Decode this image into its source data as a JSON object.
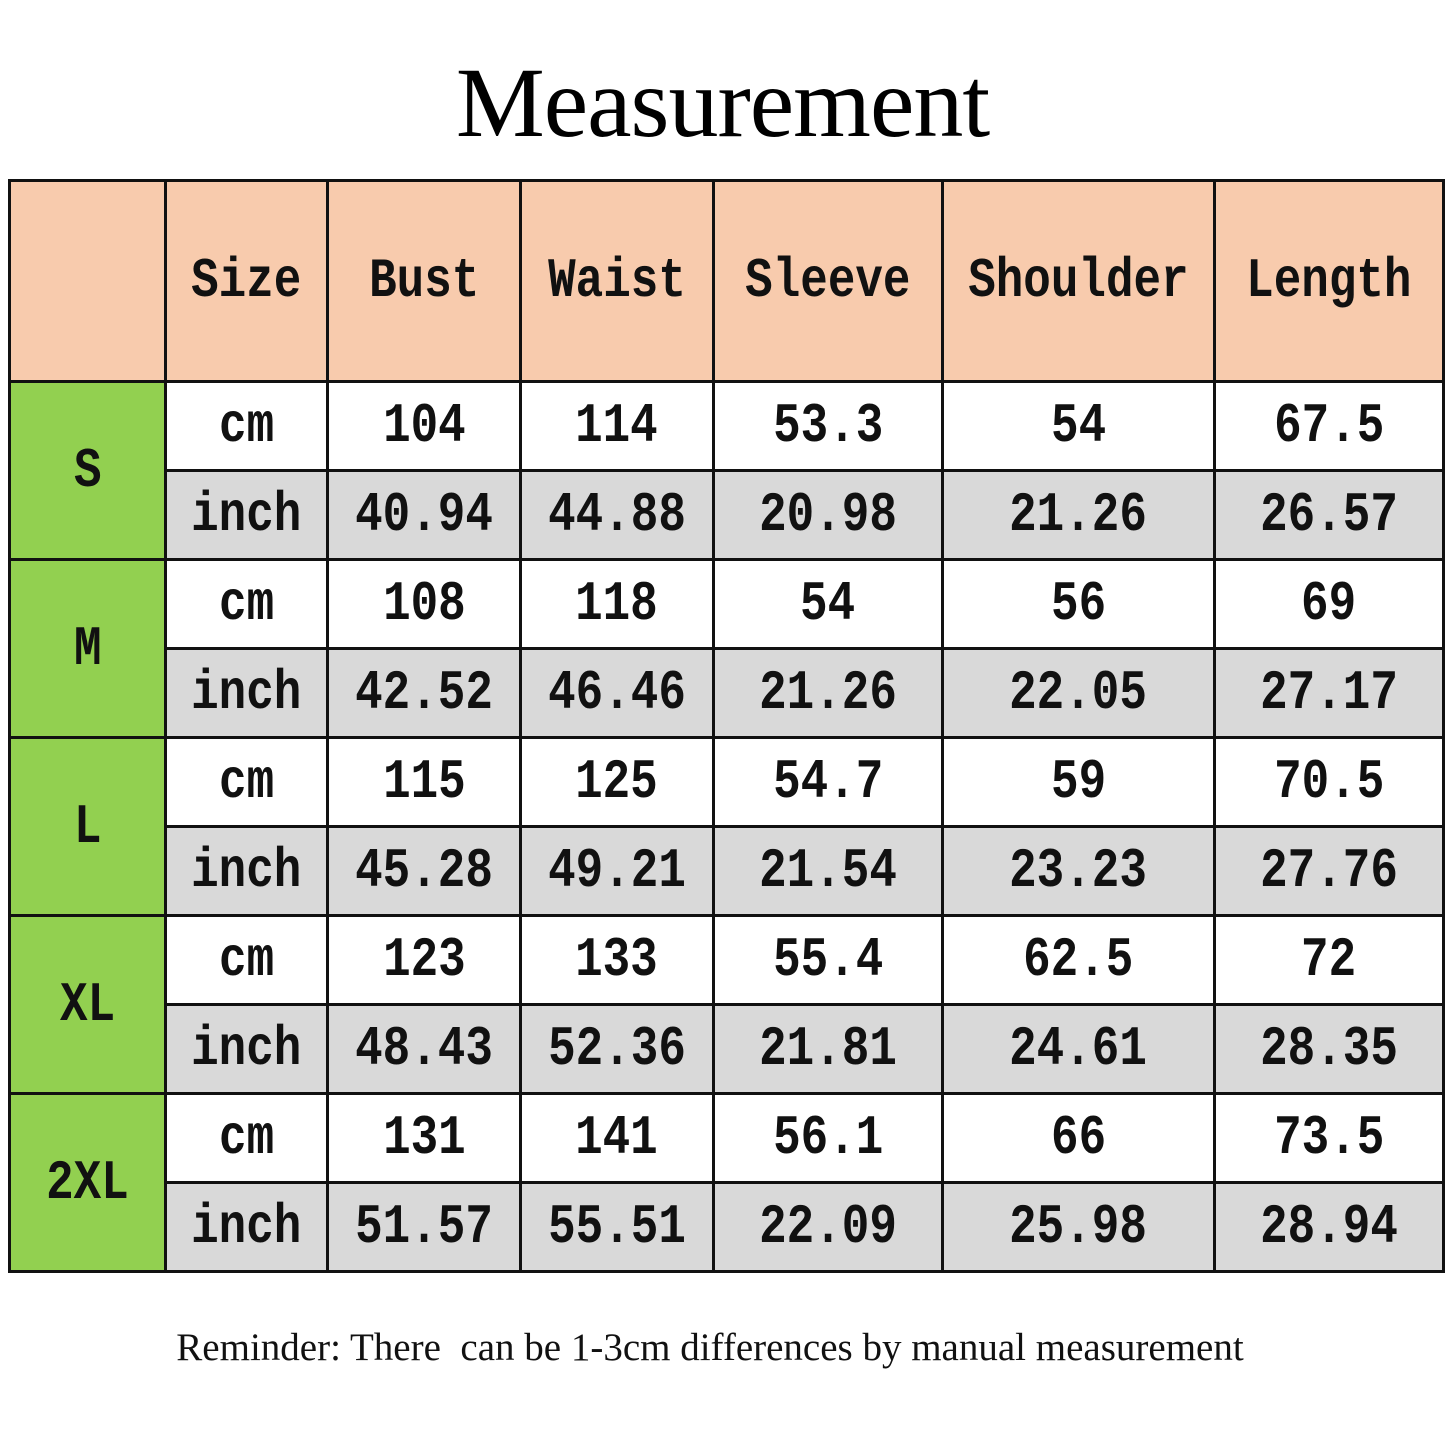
{
  "title": "Measurement",
  "table": {
    "headers": [
      "",
      "Size",
      "Bust",
      "Waist",
      "Sleeve",
      "Shoulder",
      "Length"
    ],
    "rows": [
      {
        "size": "S",
        "cm": {
          "unit": "cm",
          "values": [
            "104",
            "114",
            "53.3",
            "54",
            "67.5"
          ]
        },
        "inch": {
          "unit": "inch",
          "values": [
            "40.94",
            "44.88",
            "20.98",
            "21.26",
            "26.57"
          ]
        }
      },
      {
        "size": "M",
        "cm": {
          "unit": "cm",
          "values": [
            "108",
            "118",
            "54",
            "56",
            "69"
          ]
        },
        "inch": {
          "unit": "inch",
          "values": [
            "42.52",
            "46.46",
            "21.26",
            "22.05",
            "27.17"
          ]
        }
      },
      {
        "size": "L",
        "cm": {
          "unit": "cm",
          "values": [
            "115",
            "125",
            "54.7",
            "59",
            "70.5"
          ]
        },
        "inch": {
          "unit": "inch",
          "values": [
            "45.28",
            "49.21",
            "21.54",
            "23.23",
            "27.76"
          ]
        }
      },
      {
        "size": "XL",
        "cm": {
          "unit": "cm",
          "values": [
            "123",
            "133",
            "55.4",
            "62.5",
            "72"
          ]
        },
        "inch": {
          "unit": "inch",
          "values": [
            "48.43",
            "52.36",
            "21.81",
            "24.61",
            "28.35"
          ]
        }
      },
      {
        "size": "2XL",
        "cm": {
          "unit": "cm",
          "values": [
            "131",
            "141",
            "56.1",
            "66",
            "73.5"
          ]
        },
        "inch": {
          "unit": "inch",
          "values": [
            "51.57",
            "55.51",
            "22.09",
            "25.98",
            "28.94"
          ]
        }
      }
    ]
  },
  "colors": {
    "header_bg": "#f8cbad",
    "size_bg": "#92d050",
    "inch_row_bg": "#d9d9d9"
  },
  "reminder": "Reminder: There  can be 1-3cm differences by manual measurement"
}
